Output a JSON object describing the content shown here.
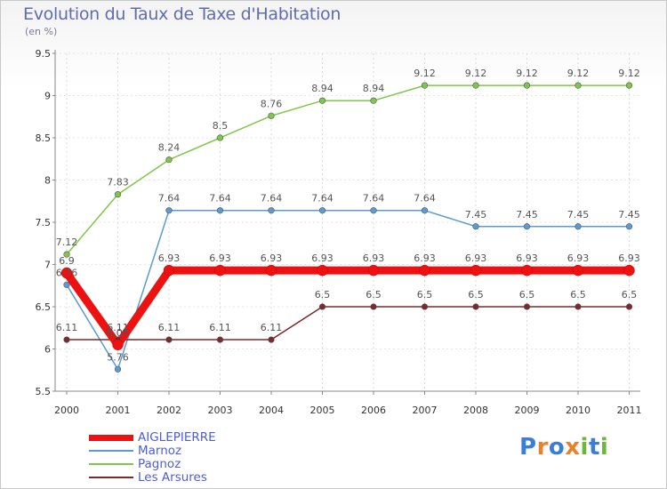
{
  "title": "Evolution du Taux de Taxe d'Habitation",
  "subtitle": "(en %)",
  "logo": {
    "letters": [
      "P",
      "r",
      "o",
      "x",
      "i",
      "t",
      "i"
    ],
    "colors": [
      "#3a7fd5",
      "#e8822a",
      "#3a7fd5",
      "#e8822a",
      "#6bb83a",
      "#3a7fd5",
      "#6bb83a"
    ]
  },
  "chart_data": {
    "type": "line",
    "title": "Evolution du Taux de Taxe d'Habitation",
    "ylabel": "(en %)",
    "xlabel": "",
    "x": [
      "2000",
      "2001",
      "2002",
      "2003",
      "2004",
      "2005",
      "2006",
      "2007",
      "2008",
      "2009",
      "2010",
      "2011"
    ],
    "ylim": [
      5.5,
      9.5
    ],
    "yticks": [
      "5.5",
      "6",
      "6.5",
      "7",
      "7.5",
      "8",
      "8.5",
      "9",
      "9.5"
    ],
    "series": [
      {
        "name": "Pagnoz",
        "color": "#7ec74a",
        "values": [
          7.12,
          7.83,
          8.24,
          8.5,
          8.76,
          8.94,
          8.94,
          9.12,
          9.12,
          9.12,
          9.12,
          9.12
        ],
        "labels": [
          "7.12",
          "7.83",
          "8.24",
          "8.5",
          "8.76",
          "8.94",
          "8.94",
          "9.12",
          "9.12",
          "9.12",
          "9.12",
          "9.12"
        ]
      },
      {
        "name": "Marnoz",
        "color": "#5b9bd5",
        "values": [
          6.76,
          5.76,
          7.64,
          7.64,
          7.64,
          7.64,
          7.64,
          7.64,
          7.45,
          7.45,
          7.45,
          7.45
        ],
        "labels": [
          "6.76",
          "5.76",
          "7.64",
          "7.64",
          "7.64",
          "7.64",
          "7.64",
          "7.64",
          "7.45",
          "7.45",
          "7.45",
          "7.45"
        ]
      },
      {
        "name": "Les Arsures",
        "color": "#7a2a2a",
        "values": [
          6.11,
          6.11,
          6.11,
          6.11,
          6.11,
          6.5,
          6.5,
          6.5,
          6.5,
          6.5,
          6.5,
          6.5
        ],
        "labels": [
          "6.11",
          "6.11",
          "6.11",
          "6.11",
          "6.11",
          "6.5",
          "6.5",
          "6.5",
          "6.5",
          "6.5",
          "6.5",
          "6.5"
        ]
      },
      {
        "name": "AIGLEPIERRE",
        "color": "#ee1111",
        "values": [
          6.9,
          6.05,
          6.93,
          6.93,
          6.93,
          6.93,
          6.93,
          6.93,
          6.93,
          6.93,
          6.93,
          6.93
        ],
        "labels": [
          "6.9",
          "6.05",
          "6.93",
          "6.93",
          "6.93",
          "6.93",
          "6.93",
          "6.93",
          "6.93",
          "6.93",
          "6.93",
          "6.93"
        ]
      }
    ],
    "legend": [
      "AIGLEPIERRE",
      "Marnoz",
      "Pagnoz",
      "Les Arsures"
    ],
    "legend_position": "bottom-left",
    "grid": true
  }
}
